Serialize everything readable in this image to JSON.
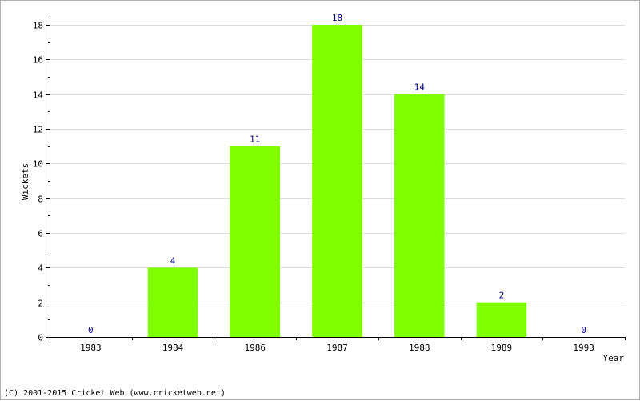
{
  "chart_data": {
    "type": "bar",
    "categories": [
      "1983",
      "1984",
      "1986",
      "1987",
      "1988",
      "1989",
      "1993"
    ],
    "values": [
      0,
      4,
      11,
      18,
      14,
      2,
      0
    ],
    "title": "",
    "xlabel": "Year",
    "ylabel": "Wickets",
    "ylim": [
      0,
      18
    ],
    "yticks": [
      0,
      2,
      4,
      6,
      8,
      10,
      12,
      14,
      16,
      18
    ],
    "grid": true,
    "data_labels": true,
    "bar_color": "#80ff00",
    "label_color": "#000080"
  },
  "footer": {
    "copyright": "(C) 2001-2015 Cricket Web (www.cricketweb.net)"
  }
}
